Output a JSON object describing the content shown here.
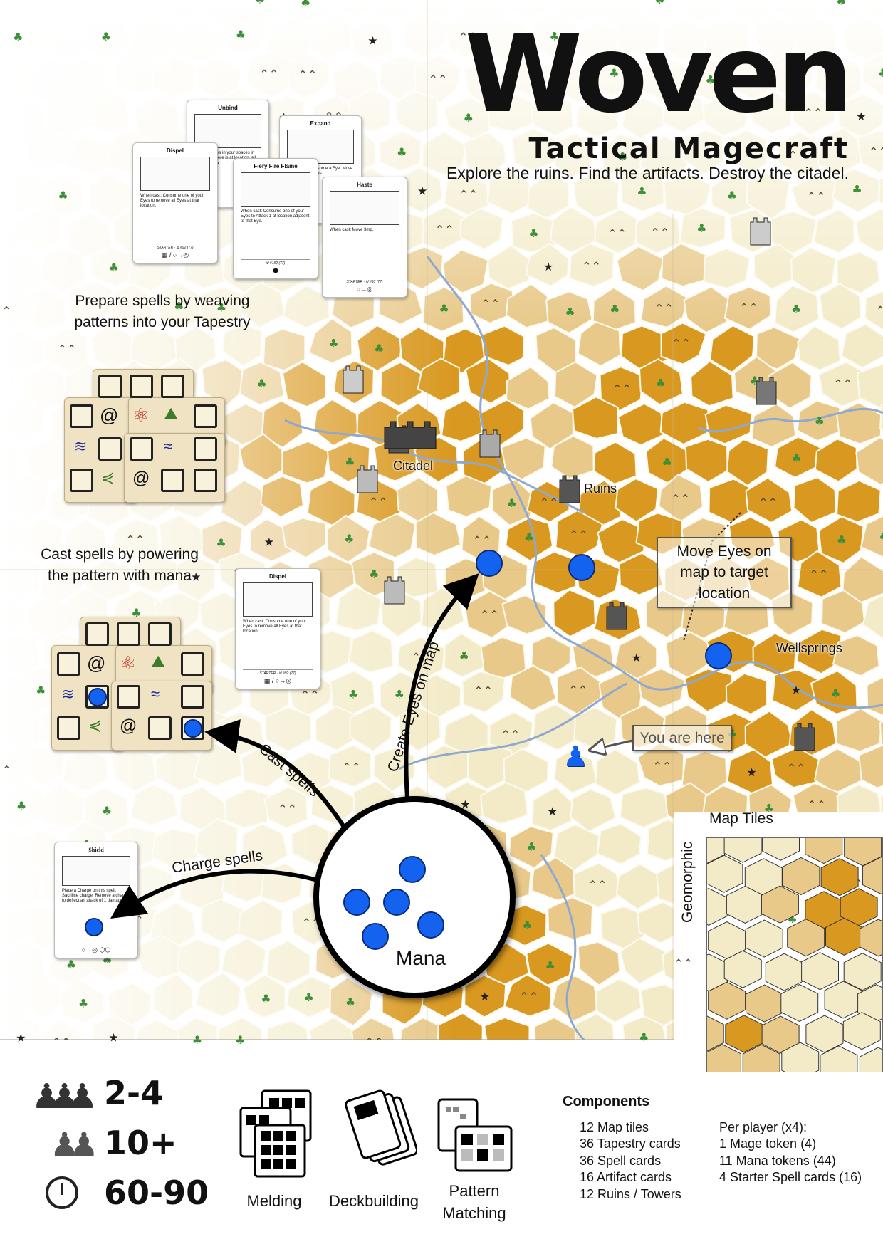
{
  "header": {
    "title": "Woven",
    "subtitle": "Tactical Magecraft",
    "tagline": "Explore the ruins. Find the artifacts. Destroy the citadel."
  },
  "captions": {
    "prepare": "Prepare spells by weaving patterns into your Tapestry",
    "cast": "Cast spells by powering the pattern with mana"
  },
  "cards": {
    "unbind": {
      "title": "Unbind",
      "text": "Move all Eyes in your spaces in adjacent. There is at location, all further below"
    },
    "expand": {
      "title": "Expand",
      "text": "When cast: Consume a Eye. Move one or two spaces."
    },
    "dispel": {
      "title": "Dispel",
      "text": "When cast: Consume one of your Eyes to remove all Eyes at that location.",
      "footer": "STARTER · id #92 (77)"
    },
    "fiery": {
      "title": "Fiery Fire Flame",
      "text": "When cast: Consume one of your Eyes to Attack 1 at location adjacent to that Eye.",
      "footer": "id #192 (77)"
    },
    "haste": {
      "title": "Haste",
      "text": "When cast: Move 3mp.",
      "footer": "STARTER · id #93 (77)"
    },
    "dispel2": {
      "title": "Dispel",
      "text": "When cast: Consume one of your Eyes to remove all Eyes at that location.",
      "footer": "STARTER · id #92 (77)"
    },
    "shield": {
      "title": "Shield",
      "text": "Place a Charge on this spell. Sacrifice charge: Remove a charge to deflect an attack of 1 damage."
    }
  },
  "map_labels": {
    "citadel": "Citadel",
    "ruins": "Ruins",
    "wellsprings": "Wellsprings",
    "move_eyes": "Move Eyes on map to target location",
    "you_are_here": "You are here"
  },
  "arrows": {
    "create_eyes": "Create Eyes on map",
    "cast_spells": "Cast spells",
    "charge_spells": "Charge spells"
  },
  "mana_label": "Mana",
  "tiles": {
    "title": "Map Tiles",
    "side_label": "Geomorphic"
  },
  "stats": {
    "players": "2-4",
    "age": "10+",
    "time": "60-90"
  },
  "mechanics": [
    "Melding",
    "Deckbuilding",
    "Pattern Matching"
  ],
  "components": {
    "heading": "Components",
    "left": [
      "12 Map tiles",
      "36 Tapestry cards",
      "36 Spell cards",
      "16 Artifact cards",
      "12 Ruins / Towers"
    ],
    "right": [
      "Per player (x4):",
      "1 Mage token (4)",
      "11 Mana tokens (44)",
      "4 Starter Spell cards (16)"
    ]
  },
  "colors": {
    "mana": "#1463f0",
    "parchment": "#f3ebc8",
    "ochre": "#d9981f",
    "tan": "#e8c98a",
    "river": "#8ea8d0"
  }
}
